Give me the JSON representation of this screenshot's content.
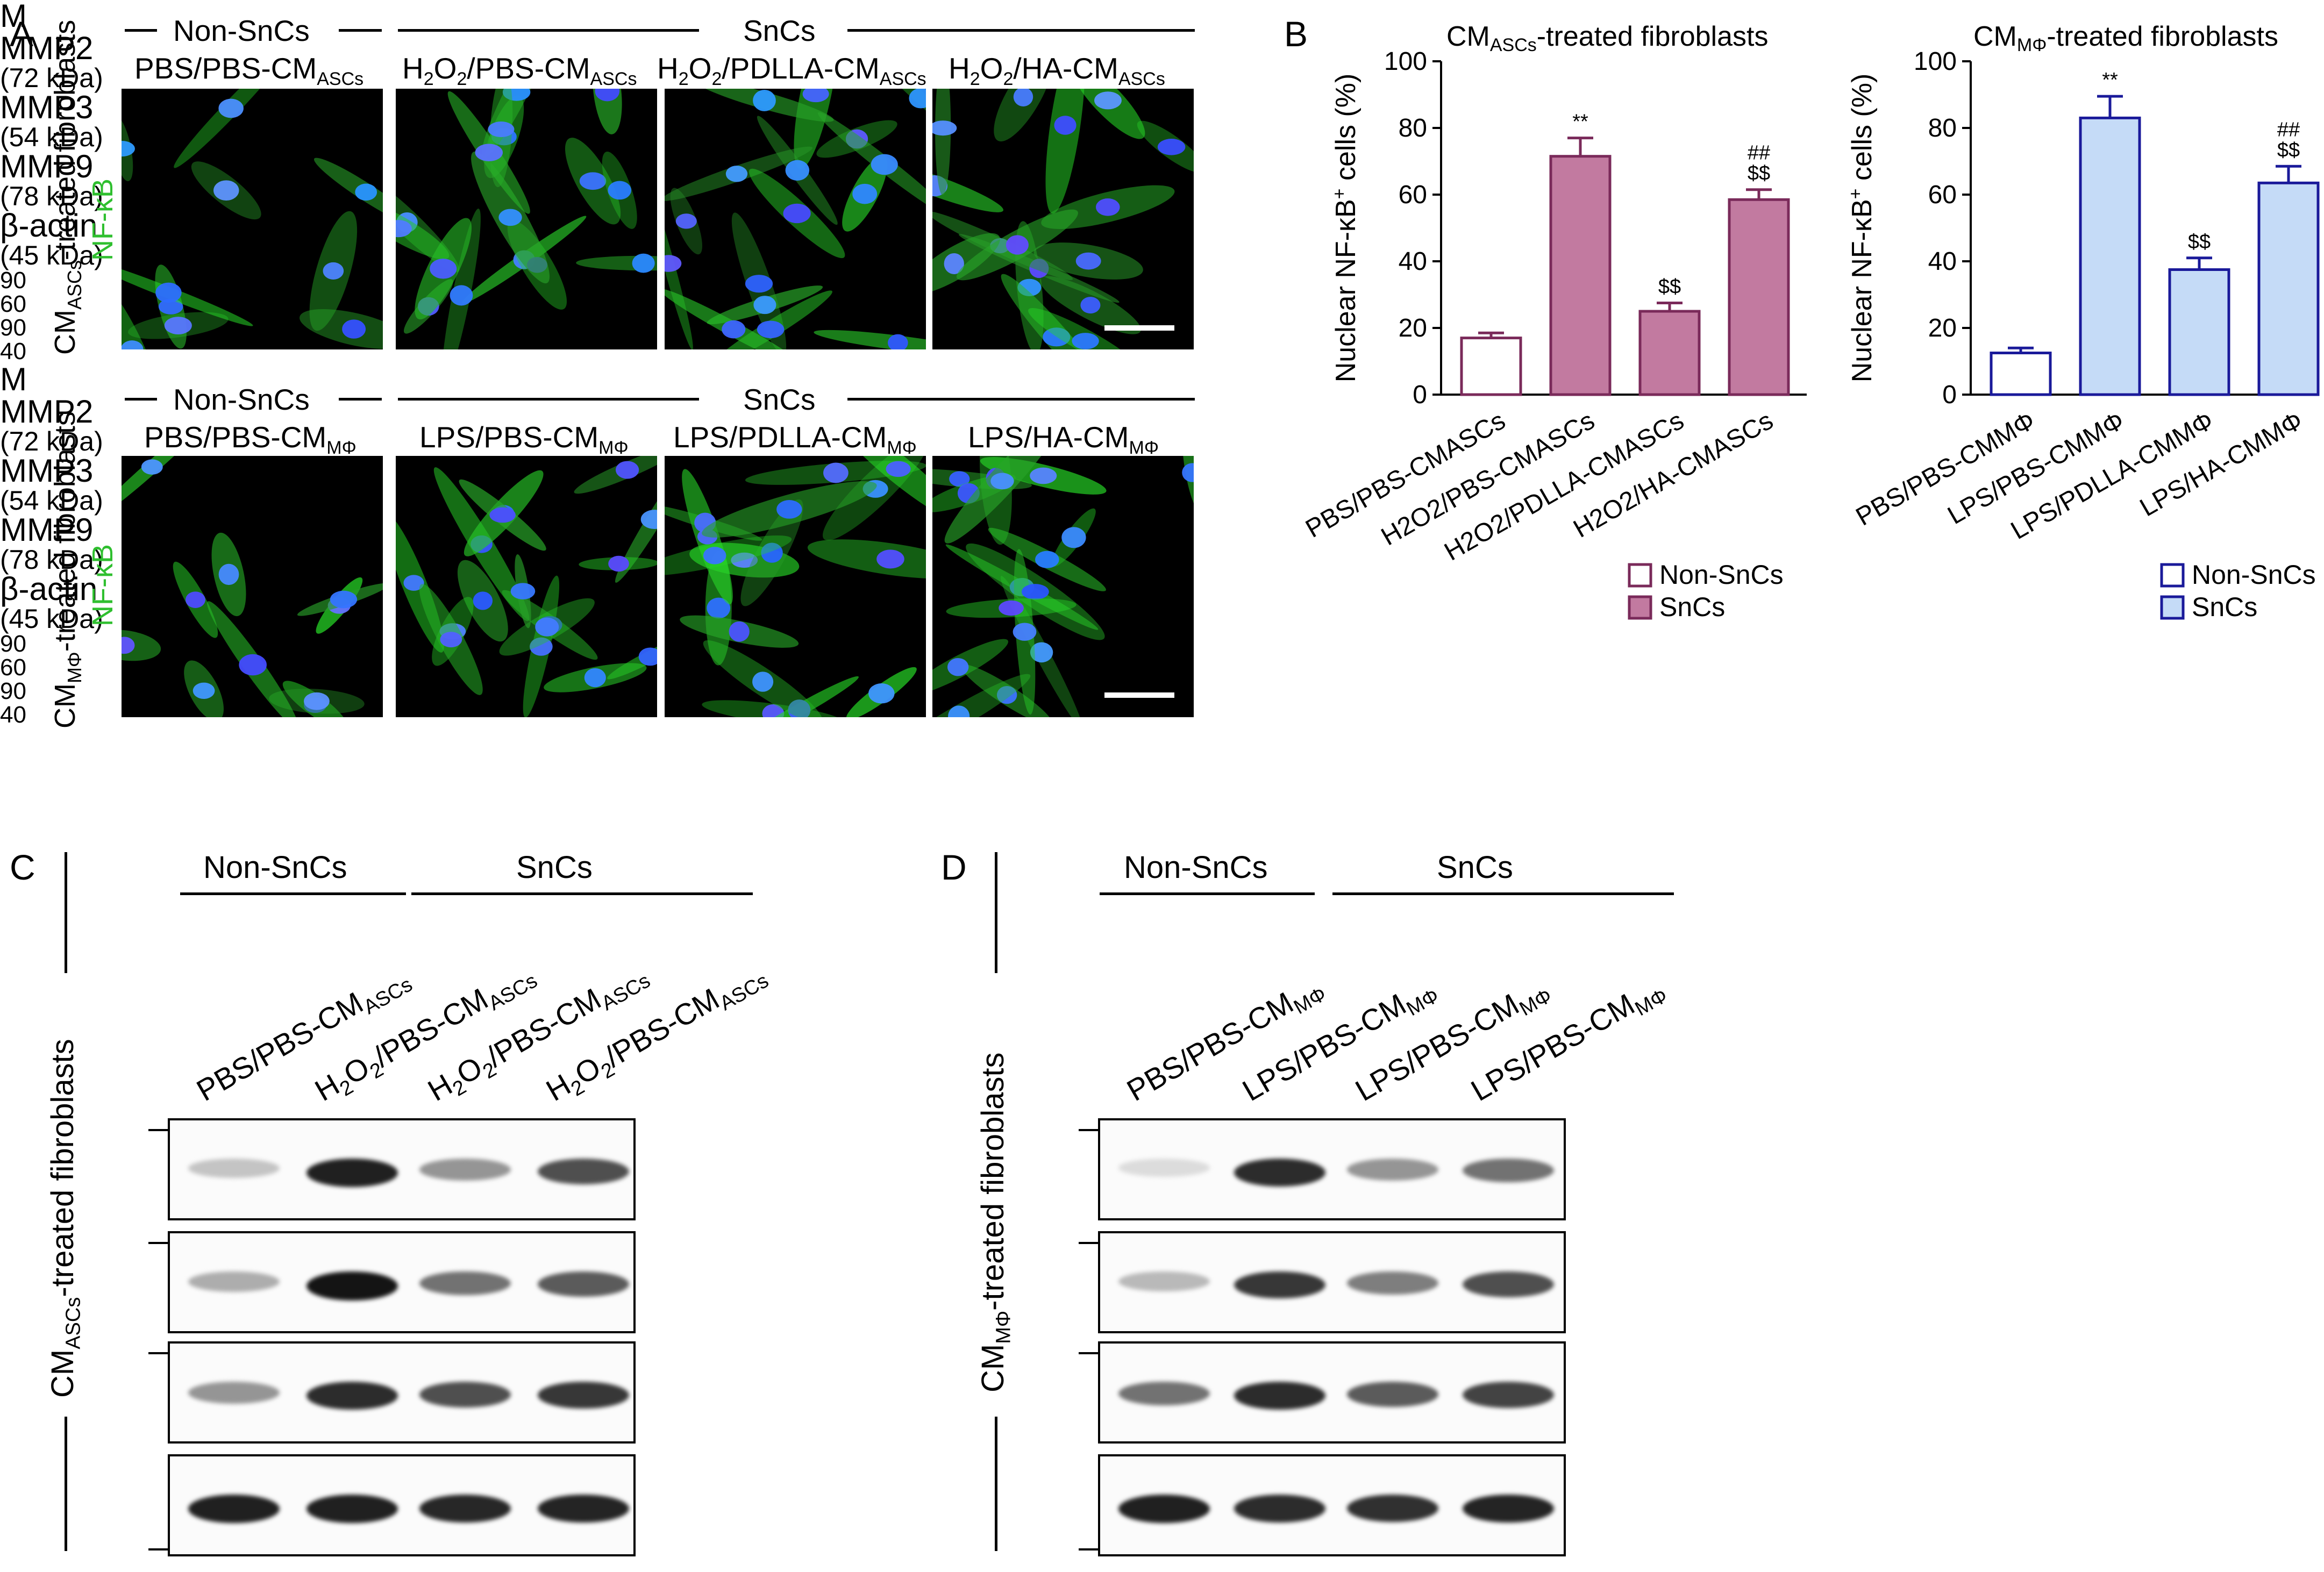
{
  "panel_a": {
    "label": "A",
    "row1": {
      "side_title": "CMASCs-treated fibroblasts",
      "side_title_main": "CM",
      "side_title_sub": "ASCs",
      "side_title_rest": "-treated fibroblasts",
      "stain": "NF-κB",
      "group_nonsncs": "Non-SnCs",
      "group_sncs": "SnCs",
      "conditions": [
        {
          "main": "PBS/PBS-CM",
          "sub": "ASCs"
        },
        {
          "main": "H2O2/PBS-CM",
          "sub": "ASCs"
        },
        {
          "main": "H2O2/PDLLA-CM",
          "sub": "ASCs"
        },
        {
          "main": "H2O2/HA-CM",
          "sub": "ASCs"
        }
      ]
    },
    "row2": {
      "side_title_main": "CM",
      "side_title_sub": "MΦ",
      "side_title_rest": "-treated fibroblasts",
      "stain": "NF-κB",
      "group_nonsncs": "Non-SnCs",
      "group_sncs": "SnCs",
      "conditions": [
        {
          "main": "PBS/PBS-CM",
          "sub": "MΦ"
        },
        {
          "main": "LPS/PBS-CM",
          "sub": "MΦ"
        },
        {
          "main": "LPS/PDLLA-CM",
          "sub": "MΦ"
        },
        {
          "main": "LPS/HA-CM",
          "sub": "MΦ"
        }
      ]
    }
  },
  "panel_b": {
    "label": "B",
    "legend_nonsncs": "Non-SnCs",
    "legend_sncs": "SnCs"
  },
  "chart_data": [
    {
      "type": "bar",
      "title": "CMASCs-treated fibroblasts",
      "title_main": "CM",
      "title_sub": "ASCs",
      "title_rest": "-treated fibroblasts",
      "ylabel": "Nuclear NF-κB+ cells (%)",
      "ylim": [
        0,
        100
      ],
      "yticks": [
        0,
        20,
        40,
        60,
        80,
        100
      ],
      "categories": [
        "PBS/PBS-CMASCs",
        "H2O2/PBS-CMASCs",
        "H2O2/PDLLA-CMASCs",
        "H2O2/HA-CMASCs"
      ],
      "values": [
        17,
        71.5,
        25,
        58.5
      ],
      "errors": [
        1.5,
        5.5,
        2.5,
        3
      ],
      "annotations": [
        "",
        "**",
        "$$",
        "##\n$$"
      ],
      "groups": [
        "Non-SnCs",
        "SnCs",
        "SnCs",
        "SnCs"
      ],
      "color": "#c27aa0",
      "edge": "#7a2a5a"
    },
    {
      "type": "bar",
      "title": "CMMΦ-treated fibroblasts",
      "title_main": "CM",
      "title_sub": "MΦ",
      "title_rest": "-treated fibroblasts",
      "ylabel": "Nuclear NF-κB+ cells (%)",
      "ylim": [
        0,
        100
      ],
      "yticks": [
        0,
        20,
        40,
        60,
        80,
        100
      ],
      "categories": [
        "PBS/PBS-CMMΦ",
        "LPS/PBS-CMMΦ",
        "LPS/PDLLA-CMMΦ",
        "LPS/HA-CMMΦ"
      ],
      "values": [
        12.5,
        83,
        37.5,
        63.5
      ],
      "errors": [
        1.5,
        6.5,
        3.5,
        5
      ],
      "annotations": [
        "",
        "**",
        "$$",
        "##\n$$"
      ],
      "groups": [
        "Non-SnCs",
        "SnCs",
        "SnCs",
        "SnCs"
      ],
      "color": "#c5dbf7",
      "edge": "#1a1a9a"
    }
  ],
  "panel_c": {
    "label": "C",
    "side_title_main": "CM",
    "side_title_sub": "ASCs",
    "side_title_rest": "-treated fibroblasts",
    "group_nonsncs": "Non-SnCs",
    "group_sncs": "SnCs",
    "marker": "M",
    "lanes": [
      {
        "main": "PBS/PBS-CM",
        "sub": "ASCs"
      },
      {
        "main": "H2O2/PBS-CM",
        "sub": "ASCs"
      },
      {
        "main": "H2O2/PBS-CM",
        "sub": "ASCs"
      },
      {
        "main": "H2O2/PBS-CM",
        "sub": "ASCs"
      }
    ],
    "markers": [
      "90",
      "60",
      "90",
      "40"
    ],
    "blots": [
      {
        "name": "MMP2",
        "kda": "(72 kDa)",
        "intensity": [
          0.25,
          0.95,
          0.45,
          0.75
        ]
      },
      {
        "name": "MMP3",
        "kda": "(54 kDa)",
        "intensity": [
          0.35,
          1.0,
          0.6,
          0.7
        ]
      },
      {
        "name": "MMP9",
        "kda": "(78 kDa)",
        "intensity": [
          0.45,
          0.9,
          0.75,
          0.85
        ]
      },
      {
        "name": "β-actin",
        "kda": "(45 kDa)",
        "intensity": [
          0.95,
          0.95,
          0.92,
          0.93
        ]
      }
    ]
  },
  "panel_d": {
    "label": "D",
    "side_title_main": "CM",
    "side_title_sub": "MΦ",
    "side_title_rest": "-treated fibroblasts",
    "group_nonsncs": "Non-SnCs",
    "group_sncs": "SnCs",
    "marker": "M",
    "lanes": [
      {
        "main": "PBS/PBS-CM",
        "sub": "MΦ"
      },
      {
        "main": "LPS/PBS-CM",
        "sub": "MΦ"
      },
      {
        "main": "LPS/PBS-CM",
        "sub": "MΦ"
      },
      {
        "main": "LPS/PBS-CM",
        "sub": "MΦ"
      }
    ],
    "markers": [
      "90",
      "60",
      "90",
      "40"
    ],
    "blots": [
      {
        "name": "MMP2",
        "kda": "(72 kDa)",
        "intensity": [
          0.15,
          0.9,
          0.45,
          0.6
        ]
      },
      {
        "name": "MMP3",
        "kda": "(54 kDa)",
        "intensity": [
          0.3,
          0.85,
          0.55,
          0.75
        ]
      },
      {
        "name": "MMP9",
        "kda": "(78 kDa)",
        "intensity": [
          0.6,
          0.9,
          0.7,
          0.8
        ]
      },
      {
        "name": "β-actin",
        "kda": "(45 kDa)",
        "intensity": [
          0.95,
          0.9,
          0.88,
          0.93
        ]
      }
    ]
  }
}
